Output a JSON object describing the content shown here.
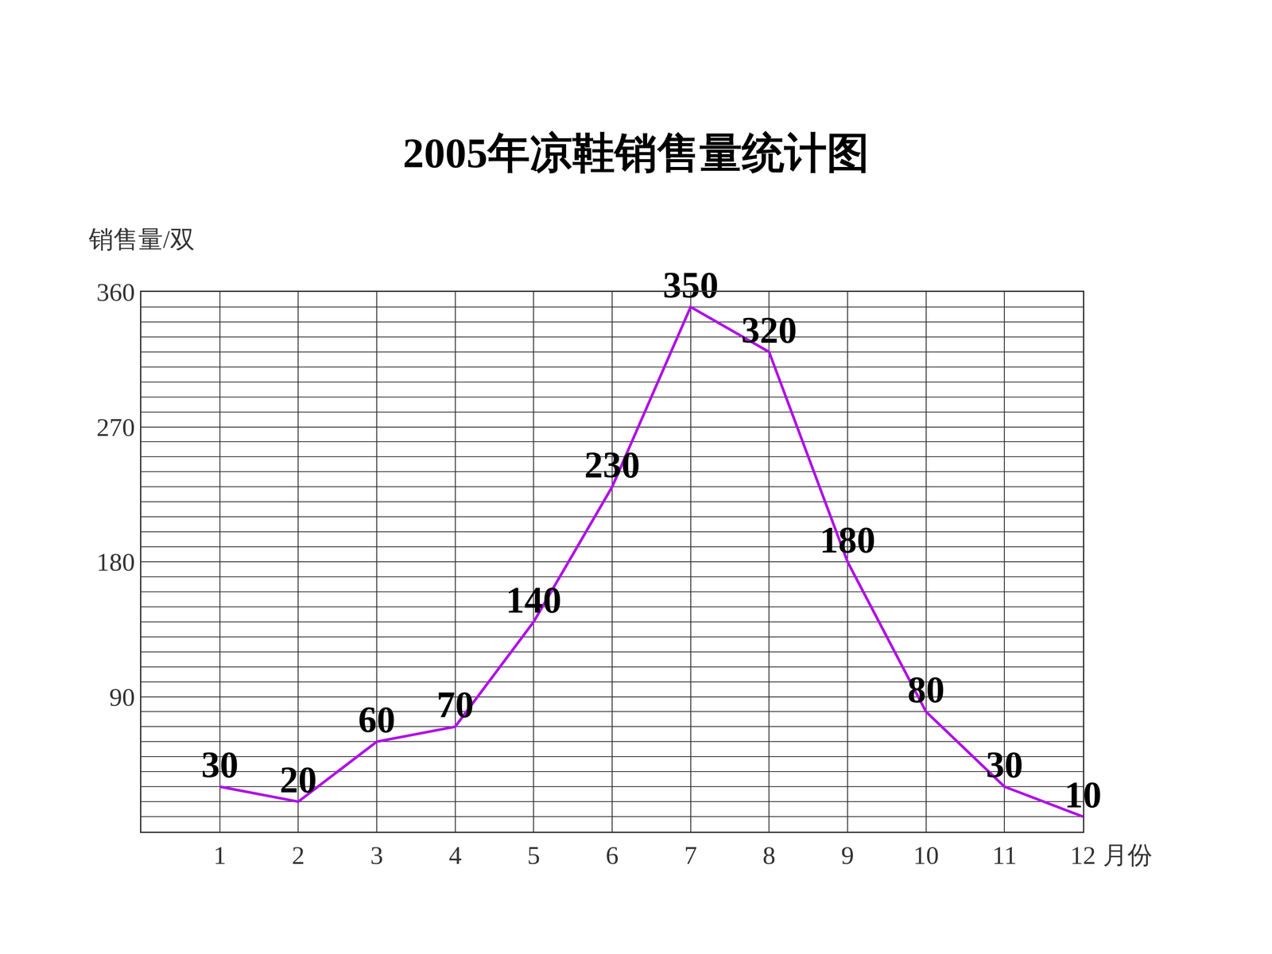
{
  "chart_data": {
    "type": "line",
    "title": "2005年凉鞋销售量统计图",
    "x_label": "月份",
    "y_label": "销售量/双",
    "categories": [
      "1",
      "2",
      "3",
      "4",
      "5",
      "6",
      "7",
      "8",
      "9",
      "10",
      "11",
      "12"
    ],
    "values": [
      30,
      20,
      60,
      70,
      140,
      230,
      350,
      320,
      180,
      80,
      30,
      10
    ],
    "color": "#b010e8",
    "ylim": [
      0,
      360
    ],
    "yticks": [
      90,
      180,
      270,
      360
    ],
    "grid": true,
    "data_labels": true
  }
}
